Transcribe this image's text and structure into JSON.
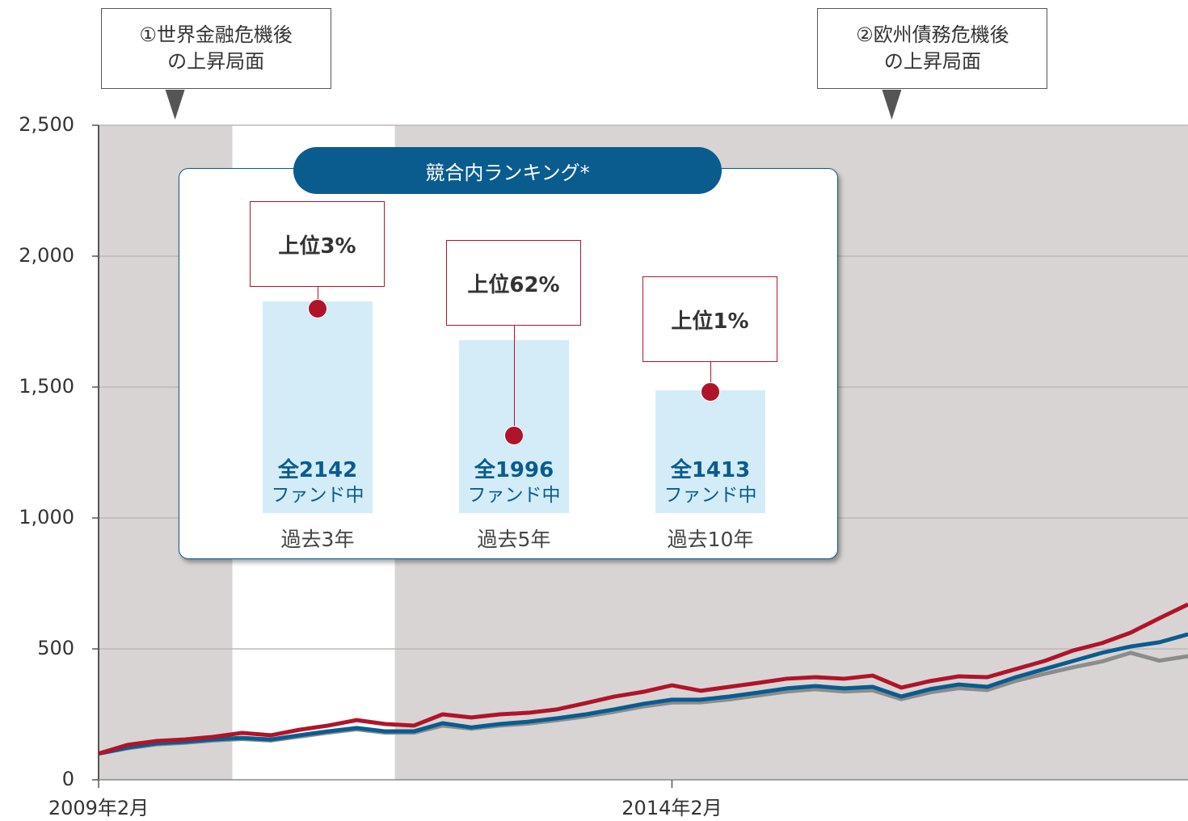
{
  "chart_data": {
    "type": "line",
    "x": [
      "2009-02",
      "2009-05",
      "2009-08",
      "2009-11",
      "2010-02",
      "2010-05",
      "2010-08",
      "2010-11",
      "2011-02",
      "2011-05",
      "2011-08",
      "2011-11",
      "2012-02",
      "2012-05",
      "2012-08",
      "2012-11",
      "2013-02",
      "2013-05",
      "2013-08",
      "2013-11",
      "2014-02",
      "2014-05",
      "2014-08",
      "2014-11",
      "2015-02",
      "2015-05",
      "2015-08",
      "2015-11",
      "2016-02",
      "2016-05",
      "2016-08",
      "2016-11",
      "2017-02",
      "2017-05",
      "2017-08",
      "2017-11",
      "2018-02",
      "2018-05",
      "2018-08"
    ],
    "series": [
      {
        "color": "#8c8c8c",
        "values": [
          100,
          120,
          135,
          141,
          150,
          156,
          150,
          165,
          180,
          193,
          180,
          180,
          207,
          195,
          207,
          215,
          228,
          242,
          260,
          280,
          295,
          296,
          307,
          322,
          337,
          346,
          337,
          342,
          308,
          334,
          350,
          343,
          378,
          405,
          430,
          452,
          485,
          455,
          472
        ]
      },
      {
        "color": "#0a5c8f",
        "values": [
          100,
          123,
          139,
          145,
          154,
          160,
          154,
          170,
          185,
          198,
          185,
          185,
          216,
          200,
          213,
          222,
          235,
          250,
          269,
          290,
          306,
          306,
          318,
          333,
          349,
          358,
          349,
          355,
          318,
          346,
          364,
          355,
          392,
          423,
          454,
          485,
          509,
          525,
          556
        ]
      },
      {
        "color": "#b0142a",
        "values": [
          100,
          133,
          148,
          154,
          164,
          179,
          170,
          191,
          207,
          228,
          213,
          207,
          250,
          238,
          250,
          256,
          269,
          293,
          318,
          336,
          361,
          340,
          355,
          370,
          386,
          392,
          386,
          398,
          352,
          377,
          395,
          392,
          423,
          454,
          494,
          522,
          562,
          617,
          670
        ]
      }
    ],
    "xlim": [
      "2009-02",
      "2018-08"
    ],
    "xticks": [
      {
        "value": "2009-02",
        "label": "2009年2月"
      },
      {
        "value": "2014-02",
        "label": "2014年2月"
      }
    ],
    "ylim": [
      0,
      2500
    ],
    "yticks": [
      0,
      500,
      {
        "value": 1000,
        "label": "1,000"
      },
      {
        "value": 1500,
        "label": "1,500"
      },
      {
        "value": 2000,
        "label": "2,000"
      },
      {
        "value": 2500,
        "label": "2,500"
      }
    ],
    "grid": true,
    "shaded_periods": [
      {
        "start": "2009-02",
        "end": "2010-04"
      },
      {
        "start": "2011-09",
        "end": "2018-08"
      }
    ],
    "shade_color": "#d9d4d4",
    "annotations": [
      {
        "text": "①世界金融危機後\nの上昇局面",
        "x": "2009-10"
      },
      {
        "text": "②欧州債務危機後\nの上昇局面",
        "x": "2016-01"
      }
    ],
    "ranking_panel": {
      "title": "競合内ランキング*",
      "items": [
        {
          "rank": "上位3%",
          "total": "全2142",
          "unit": "ファンド中",
          "period": "過去3年"
        },
        {
          "rank": "上位62%",
          "total": "全1996",
          "unit": "ファンド中",
          "period": "過去5年"
        },
        {
          "rank": "上位1%",
          "total": "全1413",
          "unit": "ファンド中",
          "period": "過去10年"
        }
      ]
    }
  }
}
